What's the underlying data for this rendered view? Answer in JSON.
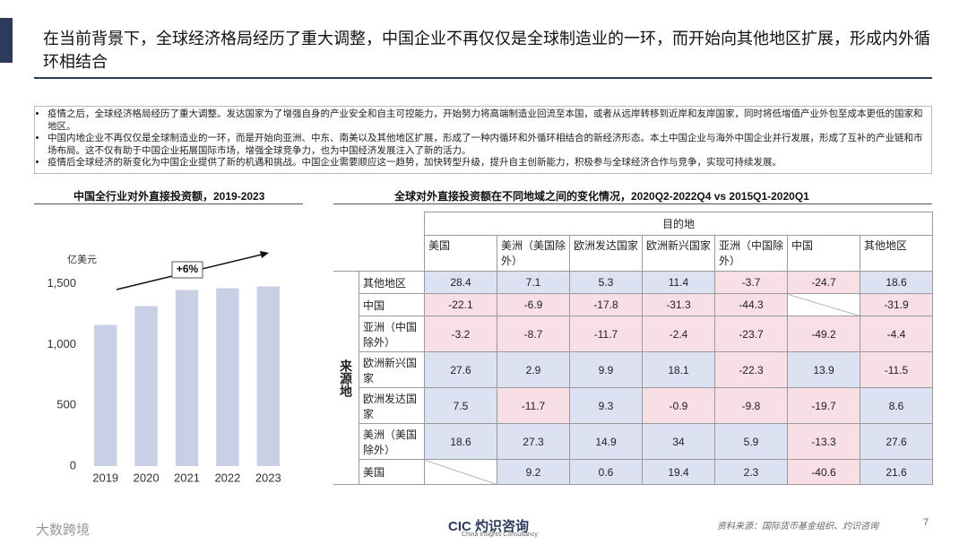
{
  "header": {
    "title": "在当前背景下，全球经济格局经历了重大调整，中国企业不再仅仅是全球制造业的一环，而开始向其他地区扩展，形成内外循环相结合"
  },
  "bullets": [
    "疫情之后，全球经济格局经历了重大调整。发达国家为了增强自身的产业安全和自主可控能力，开始努力将高端制造业回流至本国，或者从远岸转移到近岸和友岸国家，同时将低增值产业外包至成本更低的国家和地区。",
    "中国内地企业不再仅仅是全球制造业的一环，而是开始向亚洲、中东、南美以及其他地区扩展，形成了一种内循环和外循环相结合的新经济形态。本土中国企业与海外中国企业并行发展，形成了互补的产业链和市场布局。这不仅有助于中国企业拓展国际市场，增强全球竞争力，也为中国经济发展注入了新的活力。",
    "疫情后全球经济的新变化为中国企业提供了新的机遇和挑战。中国企业需要顺应这一趋势，加快转型升级，提升自主创新能力，积极参与全球经济合作与竞争，实现可持续发展。"
  ],
  "chart_data": {
    "type": "bar",
    "title": "中国全行业对外直接投资额，2019-2023",
    "y_unit": "亿美元",
    "annotation": "+6%",
    "categories": [
      "2019",
      "2020",
      "2021",
      "2022",
      "2023"
    ],
    "values": [
      1162,
      1316,
      1449,
      1463,
      1478
    ],
    "color": "#c9d0e6",
    "ylim": [
      0,
      1600
    ],
    "yticks": [
      0,
      {
        "value": 500,
        "label": "500"
      },
      {
        "value": 1000,
        "label": "1,000"
      },
      {
        "value": 1500,
        "label": "1,500"
      }
    ],
    "grid": false
  },
  "table": {
    "title": "全球对外直接投资额在不同地域之间的变化情况，2020Q2-2022Q4 vs 2015Q1-2020Q1",
    "column_group": "目的地",
    "row_group": "来源地",
    "columns": [
      "美国",
      "美洲（美国除外）",
      "欧洲发达国家",
      "欧洲新兴国家",
      "亚洲（中国除外）",
      "中国",
      "其他地区"
    ],
    "rows": [
      {
        "label": "其他地区",
        "values": [
          28.4,
          7.1,
          5.3,
          11.4,
          -3.7,
          -24.7,
          18.6
        ]
      },
      {
        "label": "中国",
        "values": [
          -22.1,
          -6.9,
          -17.8,
          -31.3,
          -44.3,
          null,
          -31.9
        ]
      },
      {
        "label": "亚洲（中国除外）",
        "values": [
          -3.2,
          -8.7,
          -11.7,
          -2.4,
          -23.7,
          -49.2,
          -4.4
        ]
      },
      {
        "label": "欧洲新兴国家",
        "values": [
          27.6,
          2.9,
          9.9,
          18.1,
          -22.3,
          13.9,
          -11.5
        ]
      },
      {
        "label": "欧洲发达国家",
        "values": [
          7.5,
          -11.7,
          9.3,
          -0.9,
          -9.8,
          -19.7,
          8.6
        ]
      },
      {
        "label": "美洲（美国除外）",
        "values": [
          18.6,
          27.3,
          14.9,
          34,
          5.9,
          -13.3,
          27.6
        ]
      },
      {
        "label": "美国",
        "values": [
          null,
          9.2,
          0.6,
          19.4,
          2.3,
          -40.6,
          21.6
        ]
      }
    ],
    "positive_color": "#dde2f2",
    "negative_color": "#f7dfe5"
  },
  "footer": {
    "logo": "CIC 灼识咨询",
    "logo_sub": "China Insights Consultancy",
    "source": "资料来源：国际货币基金组织、灼识咨询",
    "page": "7",
    "watermark": "大数跨境"
  }
}
